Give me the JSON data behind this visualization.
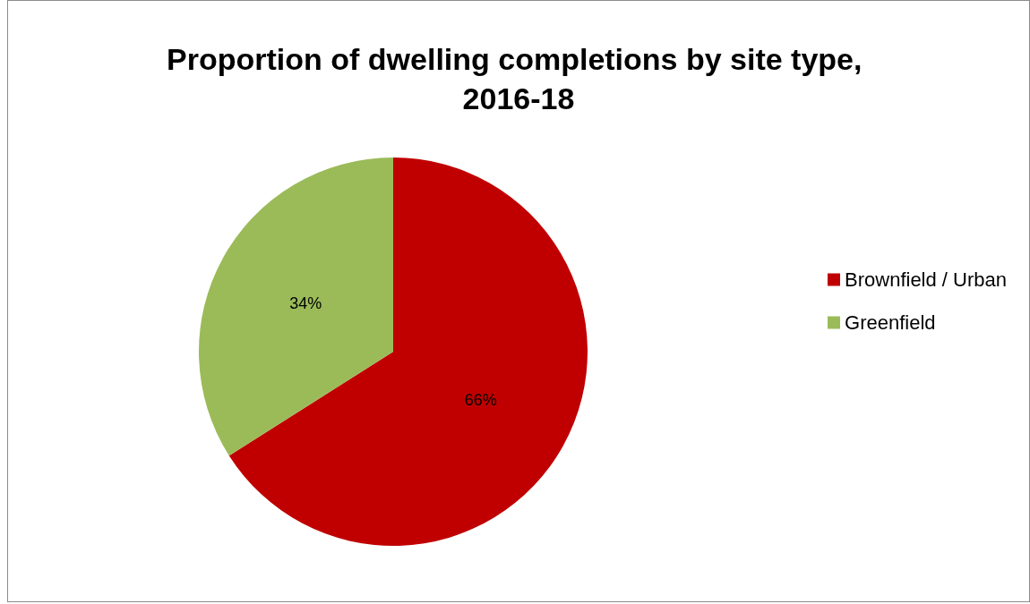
{
  "chart_data": {
    "type": "pie",
    "title": "Proportion of dwelling completions by site type, 2016-18",
    "categories": [
      "Brownfield / Urban",
      "Greenfield"
    ],
    "values": [
      66,
      34
    ],
    "colors": [
      "#c00000",
      "#9bbb59"
    ],
    "value_labels": [
      "66%",
      "34%"
    ],
    "legend": "right"
  }
}
